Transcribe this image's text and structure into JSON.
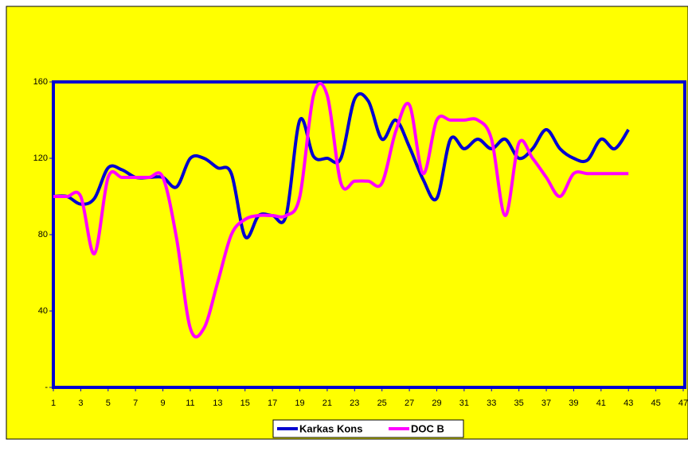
{
  "chart_data": {
    "type": "line",
    "x": [
      1,
      2,
      3,
      4,
      5,
      6,
      7,
      8,
      9,
      10,
      11,
      12,
      13,
      14,
      15,
      16,
      17,
      18,
      19,
      20,
      21,
      22,
      23,
      24,
      25,
      26,
      27,
      28,
      29,
      30,
      31,
      32,
      33,
      34,
      35,
      36,
      37,
      38,
      39,
      40,
      41,
      42,
      43
    ],
    "series": [
      {
        "name": "Karkas Kons",
        "color": "#0000d0",
        "values": [
          100,
          100,
          96,
          99,
          115,
          114,
          110,
          110,
          110,
          105,
          120,
          120,
          115,
          112,
          79,
          90,
          90,
          90,
          140,
          121,
          120,
          120,
          151,
          150,
          130,
          140,
          126,
          109,
          99,
          130,
          125,
          130,
          125,
          130,
          120,
          125,
          135,
          125,
          120,
          119,
          130,
          125,
          135
        ]
      },
      {
        "name": "DOC B",
        "color": "#ff00ff",
        "values": [
          100,
          100,
          100,
          70,
          110,
          110,
          110,
          110,
          110,
          78,
          31,
          31,
          55,
          80,
          88,
          90,
          90,
          90,
          100,
          153,
          153,
          107,
          108,
          108,
          107,
          134,
          148,
          112,
          140,
          140,
          140,
          140,
          130,
          90,
          128,
          120,
          110,
          100,
          112,
          112,
          112,
          112,
          112
        ]
      }
    ],
    "xlim": [
      1,
      47
    ],
    "xticks": [
      1,
      3,
      5,
      7,
      9,
      11,
      13,
      15,
      17,
      19,
      21,
      23,
      25,
      27,
      29,
      31,
      33,
      35,
      37,
      39,
      41,
      43,
      45,
      47
    ],
    "ylim": [
      0,
      160
    ],
    "yticks": [
      {
        "value": 0,
        "label": "-"
      },
      40,
      80,
      120,
      160
    ],
    "legend": "bottom"
  }
}
